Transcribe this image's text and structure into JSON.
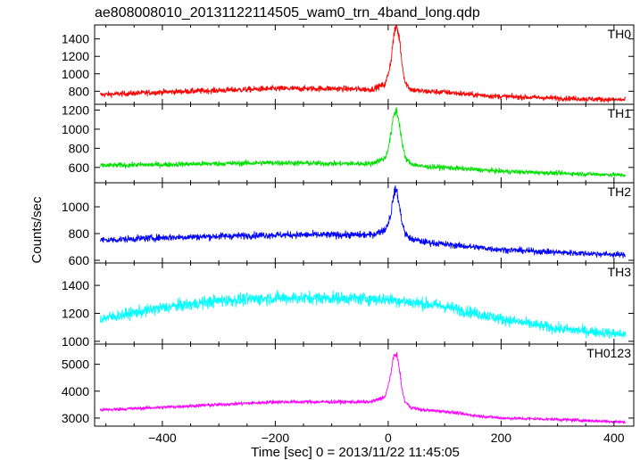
{
  "chart_data": {
    "type": "line",
    "title": "ae808008010_20131122114505_wam0_trn_4band_long.qdp",
    "xlabel": "Time [sec] 0 = 2013/11/22 11:45:05",
    "ylabel": "Counts/sec",
    "xlim": [
      -520,
      435
    ],
    "x_ticks": [
      -400,
      -200,
      0,
      200,
      400
    ],
    "panels": [
      {
        "name": "TH0",
        "color": "#ff0000",
        "ylim": [
          650,
          1560
        ],
        "y_ticks": [
          800,
          1000,
          1200,
          1400
        ],
        "x": [
          -510,
          -400,
          -300,
          -200,
          -100,
          -30,
          -5,
          0,
          5,
          10,
          15,
          20,
          25,
          30,
          40,
          60,
          100,
          150,
          200,
          300,
          420
        ],
        "y": [
          760,
          790,
          810,
          830,
          830,
          820,
          880,
          1000,
          1150,
          1450,
          1550,
          1400,
          1100,
          900,
          820,
          800,
          790,
          760,
          740,
          720,
          700
        ],
        "noise": 35
      },
      {
        "name": "TH1",
        "color": "#00e000",
        "ylim": [
          440,
          1260
        ],
        "y_ticks": [
          600,
          800,
          1000,
          1200
        ],
        "x": [
          -510,
          -400,
          -300,
          -200,
          -100,
          -30,
          -5,
          0,
          5,
          10,
          15,
          20,
          25,
          30,
          40,
          60,
          100,
          150,
          200,
          300,
          420
        ],
        "y": [
          620,
          630,
          640,
          650,
          640,
          640,
          700,
          800,
          950,
          1150,
          1200,
          1050,
          850,
          700,
          640,
          610,
          600,
          580,
          560,
          540,
          520
        ],
        "noise": 30
      },
      {
        "name": "TH2",
        "color": "#0000ff",
        "ylim": [
          580,
          1180
        ],
        "y_ticks": [
          600,
          800,
          1000
        ],
        "x": [
          -510,
          -400,
          -300,
          -200,
          -100,
          -30,
          -5,
          0,
          5,
          10,
          15,
          20,
          25,
          30,
          40,
          60,
          100,
          150,
          200,
          300,
          420
        ],
        "y": [
          750,
          770,
          780,
          790,
          790,
          790,
          830,
          880,
          950,
          1100,
          1130,
          1000,
          880,
          800,
          760,
          740,
          720,
          700,
          680,
          660,
          640
        ],
        "noise": 28
      },
      {
        "name": "TH3",
        "color": "#00ffff",
        "ylim": [
          980,
          1560
        ],
        "y_ticks": [
          1000,
          1200,
          1400
        ],
        "x": [
          -510,
          -400,
          -300,
          -200,
          -100,
          0,
          100,
          200,
          300,
          420
        ],
        "y": [
          1160,
          1240,
          1290,
          1310,
          1310,
          1300,
          1250,
          1160,
          1090,
          1050
        ],
        "noise": 45
      },
      {
        "name": "TH0123",
        "color": "#ff00ff",
        "ylim": [
          2700,
          5750
        ],
        "y_ticks": [
          3000,
          4000,
          5000
        ],
        "x": [
          -510,
          -400,
          -300,
          -200,
          -100,
          -30,
          -5,
          0,
          5,
          10,
          15,
          20,
          25,
          30,
          40,
          60,
          100,
          150,
          200,
          300,
          420
        ],
        "y": [
          3300,
          3400,
          3500,
          3600,
          3600,
          3600,
          3800,
          4200,
          4700,
          5300,
          5400,
          4800,
          4000,
          3600,
          3400,
          3300,
          3250,
          3100,
          3000,
          2950,
          2850
        ],
        "noise": 70
      }
    ],
    "grid": false,
    "legend": "panel-label-top-right"
  }
}
